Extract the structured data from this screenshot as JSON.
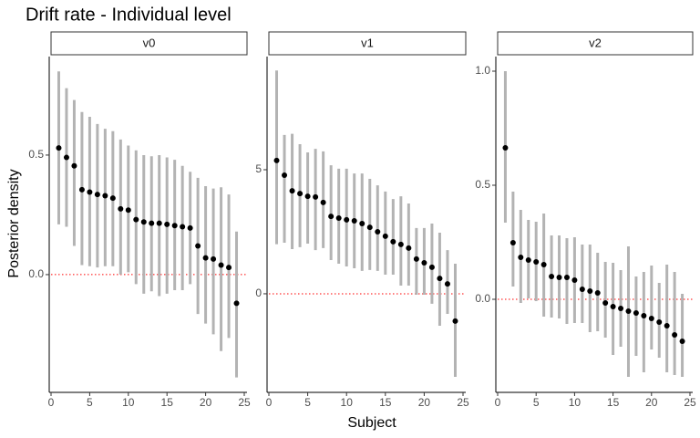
{
  "title": "Drift rate - Individual level",
  "x_label": "Subject",
  "y_label": "Posterior density",
  "chart_data": [
    {
      "type": "pointrange",
      "strip": "v0",
      "point_color": "#000000",
      "interval_color": "#b3b3b3",
      "hline": 0,
      "hline_color": "#ff0000",
      "x": [
        1,
        2,
        3,
        4,
        5,
        6,
        7,
        8,
        9,
        10,
        11,
        12,
        13,
        14,
        15,
        16,
        17,
        18,
        19,
        20,
        21,
        22,
        23,
        24
      ],
      "values": [
        0.53,
        0.49,
        0.455,
        0.355,
        0.345,
        0.335,
        0.33,
        0.32,
        0.275,
        0.27,
        0.23,
        0.22,
        0.215,
        0.215,
        0.21,
        0.205,
        0.2,
        0.195,
        0.12,
        0.07,
        0.065,
        0.04,
        0.03,
        -0.12
      ],
      "lower": [
        0.21,
        0.2,
        0.12,
        0.04,
        0.035,
        0.03,
        0.035,
        0.035,
        0.0,
        0.01,
        -0.04,
        -0.08,
        -0.07,
        -0.09,
        -0.08,
        -0.065,
        -0.065,
        -0.04,
        -0.165,
        -0.205,
        -0.25,
        -0.32,
        -0.265,
        -0.43
      ],
      "upper": [
        0.85,
        0.78,
        0.73,
        0.68,
        0.66,
        0.63,
        0.61,
        0.6,
        0.565,
        0.54,
        0.52,
        0.5,
        0.495,
        0.5,
        0.49,
        0.48,
        0.455,
        0.43,
        0.405,
        0.37,
        0.36,
        0.365,
        0.335,
        0.18
      ],
      "xlim": [
        0,
        25
      ],
      "xticks": [
        0,
        5,
        10,
        15,
        20,
        25
      ],
      "ylim": [
        -0.485,
        0.912
      ],
      "yticks": [
        {
          "value": 0,
          "label": "0.0"
        },
        {
          "value": 0.5,
          "label": "0.5"
        }
      ]
    },
    {
      "type": "pointrange",
      "strip": "v1",
      "point_color": "#000000",
      "interval_color": "#b3b3b3",
      "hline": 0,
      "hline_color": "#ff0000",
      "x": [
        1,
        2,
        3,
        4,
        5,
        6,
        7,
        8,
        9,
        10,
        11,
        12,
        13,
        14,
        15,
        16,
        17,
        18,
        19,
        20,
        21,
        22,
        23,
        24
      ],
      "values": [
        5.37,
        4.78,
        4.15,
        4.04,
        3.93,
        3.9,
        3.68,
        3.12,
        3.05,
        2.98,
        2.94,
        2.83,
        2.68,
        2.5,
        2.32,
        2.1,
        1.99,
        1.84,
        1.4,
        1.25,
        1.07,
        0.62,
        0.4,
        -1.1
      ],
      "lower": [
        2.0,
        2.06,
        1.8,
        1.88,
        2.02,
        1.76,
        1.84,
        1.36,
        1.21,
        1.1,
        1.03,
        0.92,
        0.96,
        0.92,
        0.77,
        0.77,
        0.33,
        0.33,
        -0.04,
        -0.04,
        -0.4,
        -1.29,
        -0.81,
        -3.35
      ],
      "upper": [
        9.0,
        6.4,
        6.45,
        6.03,
        5.7,
        5.84,
        5.74,
        5.18,
        5.04,
        5.04,
        4.85,
        4.85,
        4.63,
        4.37,
        4.12,
        3.82,
        3.93,
        3.64,
        2.65,
        2.65,
        2.83,
        2.46,
        1.76,
        1.21
      ],
      "xlim": [
        0,
        25
      ],
      "xticks": [
        0,
        5,
        10,
        15,
        20,
        25
      ],
      "ylim": [
        -3.9,
        9.56
      ],
      "yticks": [
        0,
        5
      ]
    },
    {
      "type": "pointrange",
      "strip": "v2",
      "point_color": "#000000",
      "interval_color": "#b3b3b3",
      "hline": 0,
      "hline_color": "#ff0000",
      "x": [
        1,
        2,
        3,
        4,
        5,
        6,
        7,
        8,
        9,
        10,
        11,
        12,
        13,
        14,
        15,
        16,
        17,
        18,
        19,
        20,
        21,
        22,
        23,
        24
      ],
      "values": [
        0.664,
        0.248,
        0.184,
        0.172,
        0.164,
        0.152,
        0.1,
        0.096,
        0.096,
        0.084,
        0.044,
        0.036,
        0.028,
        -0.016,
        -0.032,
        -0.04,
        -0.052,
        -0.06,
        -0.072,
        -0.084,
        -0.1,
        -0.116,
        -0.156,
        -0.184
      ],
      "lower": [
        0.336,
        0.056,
        -0.016,
        0.004,
        -0.008,
        -0.076,
        -0.08,
        -0.084,
        -0.108,
        -0.104,
        -0.104,
        -0.144,
        -0.14,
        -0.168,
        -0.244,
        -0.208,
        -0.34,
        -0.248,
        -0.32,
        -0.22,
        -0.256,
        -0.32,
        -0.332,
        -0.34
      ],
      "upper": [
        1.0,
        0.472,
        0.392,
        0.348,
        0.34,
        0.376,
        0.28,
        0.28,
        0.268,
        0.272,
        0.24,
        0.24,
        0.204,
        0.164,
        0.16,
        0.128,
        0.232,
        0.1,
        0.12,
        0.148,
        0.072,
        0.152,
        0.12,
        0.024
      ],
      "xlim": [
        0,
        25
      ],
      "xticks": [
        0,
        5,
        10,
        15,
        20,
        25
      ],
      "ylim": [
        -0.4,
        1.064
      ],
      "yticks": [
        {
          "value": 0,
          "label": "0.0"
        },
        {
          "value": 0.5,
          "label": "0.5"
        },
        {
          "value": 1,
          "label": "1.0"
        }
      ]
    }
  ]
}
